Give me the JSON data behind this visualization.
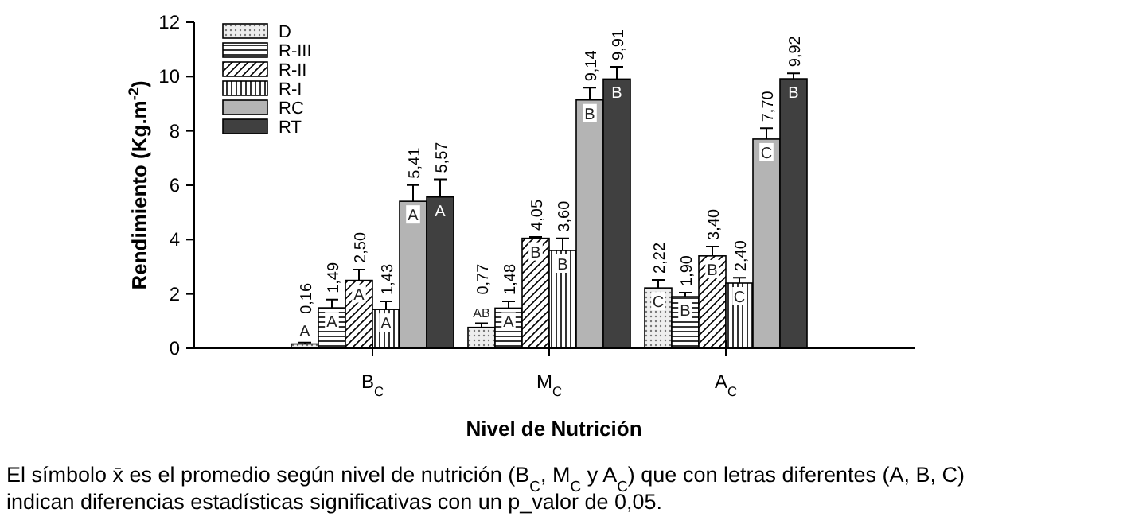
{
  "chart_data": {
    "type": "bar",
    "xlabel": "Nivel de Nutrición",
    "ylabel": "Rendimiento (Kg.m$^{-2}$)",
    "categories": [
      "B$_{C}$",
      "M$_{C}$",
      "A$_{C}$"
    ],
    "series": [
      {
        "name": "D",
        "color": "#000000",
        "values": [
          0.16,
          0.77,
          2.22
        ],
        "errors": [
          0.05,
          0.15,
          0.3
        ],
        "value_labels": [
          "0,16",
          "0,77",
          "2,22"
        ]
      },
      {
        "name": "R-III",
        "color": "#000000",
        "values": [
          1.49,
          1.48,
          1.9
        ],
        "errors": [
          0.3,
          0.25,
          0.15
        ],
        "value_labels": [
          "1,49",
          "1,48",
          "1,90"
        ]
      },
      {
        "name": "R-II",
        "color": "#000000",
        "values": [
          2.5,
          4.05,
          3.4
        ],
        "errors": [
          0.4,
          0.05,
          0.35
        ],
        "value_labels": [
          "2,50",
          "4,05",
          "3,40"
        ]
      },
      {
        "name": "R-I",
        "color": "#000000",
        "values": [
          1.43,
          3.6,
          2.4
        ],
        "errors": [
          0.3,
          0.45,
          0.2
        ],
        "value_labels": [
          "1,43",
          "3,60",
          "2,40"
        ]
      },
      {
        "name": "RC",
        "color": "#b4b4b4",
        "values": [
          5.41,
          9.14,
          7.7
        ],
        "errors": [
          0.6,
          0.45,
          0.4
        ],
        "value_labels": [
          "5,41",
          "9,14",
          "7,70"
        ]
      },
      {
        "name": "RT",
        "color": "#404040",
        "values": [
          5.57,
          9.91,
          9.92
        ],
        "errors": [
          0.65,
          0.45,
          0.2
        ],
        "value_labels": [
          "5,57",
          "9,91",
          "9,92"
        ]
      }
    ],
    "ylim": [
      0,
      12
    ],
    "yticks": [
      0,
      2,
      4,
      6,
      8,
      10,
      12
    ],
    "legend": "top left",
    "grid": false,
    "annotations": [
      "A",
      "A",
      "A",
      "A",
      "A",
      "A",
      "AB",
      "A",
      "B",
      "B",
      "B",
      "B",
      "C",
      "B",
      "B",
      "C",
      "C",
      "B",
      "El símbolo x̄ es el promedio según nivel de nutrición (B$_{C}$, M$_{C}$ y A$_{C}$) que con letras diferentes (A, B, C)",
      "indican diferencias estadísticas significativas con un p_valor de 0,05."
    ]
  }
}
